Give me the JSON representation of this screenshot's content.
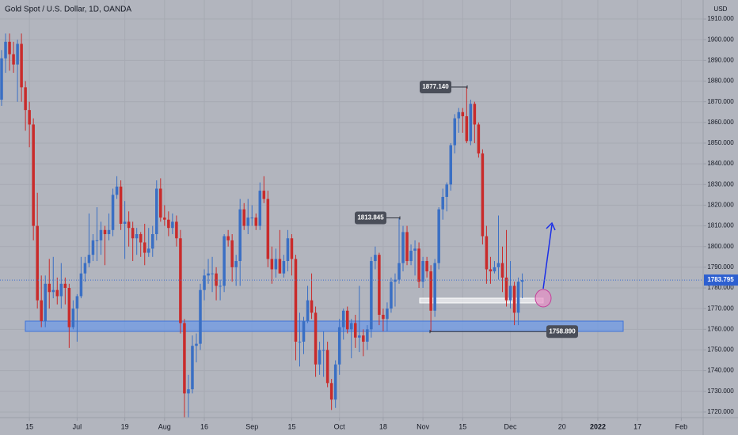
{
  "chart_data": {
    "type": "candlestick",
    "title": "Gold Spot / U.S. Dollar, 1D, OANDA",
    "y_axis_label": "USD",
    "up_color": "#3a6fc4",
    "down_color": "#c92b2b",
    "grid": true,
    "x": [
      -7,
      -6,
      -5,
      -4,
      -3,
      -2,
      -1,
      0,
      1,
      2,
      3,
      4,
      5,
      6,
      7,
      8,
      9,
      10,
      11,
      12,
      13,
      14,
      15,
      16,
      17,
      18,
      19,
      20,
      21,
      22,
      23,
      24,
      25,
      26,
      27,
      28,
      29,
      30,
      31,
      32,
      33,
      34,
      35,
      36,
      37,
      38,
      39,
      40,
      41,
      42,
      43,
      44,
      45,
      46,
      47,
      48,
      49,
      50,
      51,
      52,
      53,
      54,
      55,
      56,
      57,
      58,
      59,
      60,
      61,
      62,
      63,
      64,
      65,
      66,
      67,
      68,
      69,
      70,
      71,
      72,
      73,
      74,
      75,
      76,
      77,
      78,
      79,
      80,
      81,
      82,
      83,
      84,
      85,
      86,
      87,
      88,
      89,
      90,
      91,
      92,
      93,
      94,
      95,
      96,
      97,
      98,
      99,
      100,
      101,
      102,
      103,
      104,
      105,
      106,
      107,
      108,
      109,
      110,
      111,
      112,
      113,
      114,
      115,
      116,
      117,
      118,
      119,
      120,
      121,
      122,
      123,
      124
    ],
    "open": [
      1871,
      1891,
      1899,
      1893,
      1888,
      1898,
      1877,
      1866,
      1859,
      1810,
      1774,
      1764,
      1782,
      1778,
      1779,
      1776,
      1782,
      1780,
      1761,
      1770,
      1776,
      1787,
      1792,
      1796,
      1803,
      1803,
      1808,
      1806,
      1808,
      1825,
      1829,
      1811,
      1812,
      1809,
      1804,
      1806,
      1802,
      1797,
      1799,
      1806,
      1828,
      1814,
      1813,
      1809,
      1812,
      1804,
      1763,
      1729,
      1731,
      1752,
      1753,
      1779,
      1786,
      1787,
      1787,
      1781,
      1781,
      1805,
      1803,
      1790,
      1793,
      1818,
      1810,
      1814,
      1814,
      1810,
      1827,
      1823,
      1794,
      1789,
      1794,
      1787,
      1793,
      1804,
      1794,
      1754,
      1754,
      1764,
      1774,
      1768,
      1743,
      1750,
      1750,
      1734,
      1726,
      1743,
      1761,
      1769,
      1760,
      1763,
      1756,
      1757,
      1754,
      1760,
      1793,
      1796,
      1767,
      1765,
      1770,
      1783,
      1784,
      1792,
      1807,
      1793,
      1798,
      1799,
      1783,
      1793,
      1788,
      1769,
      1792,
      1818,
      1824,
      1830,
      1849,
      1862,
      1865,
      1863,
      1851,
      1869,
      1859,
      1845,
      1805,
      1789,
      1788,
      1790,
      1792,
      1785,
      1774,
      1781,
      1768,
      1783
    ],
    "high": [
      1895,
      1903,
      1903,
      1899,
      1900,
      1903,
      1880,
      1870,
      1862,
      1826,
      1786,
      1786,
      1794,
      1795,
      1785,
      1792,
      1785,
      1782,
      1774,
      1777,
      1795,
      1795,
      1816,
      1806,
      1819,
      1812,
      1810,
      1816,
      1828,
      1834,
      1832,
      1822,
      1817,
      1812,
      1809,
      1807,
      1811,
      1809,
      1810,
      1832,
      1833,
      1820,
      1817,
      1816,
      1815,
      1808,
      1765,
      1738,
      1757,
      1758,
      1782,
      1789,
      1794,
      1795,
      1790,
      1784,
      1806,
      1808,
      1806,
      1796,
      1823,
      1821,
      1823,
      1820,
      1816,
      1831,
      1834,
      1827,
      1800,
      1799,
      1808,
      1796,
      1808,
      1806,
      1796,
      1768,
      1766,
      1781,
      1787,
      1771,
      1754,
      1759,
      1754,
      1736,
      1745,
      1765,
      1770,
      1771,
      1765,
      1767,
      1781,
      1760,
      1762,
      1795,
      1800,
      1797,
      1770,
      1773,
      1785,
      1787,
      1813.845,
      1810,
      1810,
      1801,
      1803,
      1802,
      1795,
      1795,
      1791,
      1794,
      1819,
      1828,
      1831,
      1850,
      1864,
      1867,
      1867,
      1877.14,
      1871,
      1870,
      1860,
      1847,
      1810,
      1795,
      1793,
      1815,
      1800,
      1808,
      1793,
      1783,
      1785,
      1787
    ],
    "low": [
      1868,
      1884,
      1885,
      1884,
      1870,
      1870,
      1856,
      1848,
      1803,
      1770,
      1761,
      1761,
      1770,
      1775,
      1772,
      1770,
      1772,
      1751,
      1760,
      1754,
      1775,
      1783,
      1790,
      1793,
      1793,
      1796,
      1791,
      1803,
      1805,
      1823,
      1808,
      1794,
      1800,
      1793,
      1796,
      1795,
      1791,
      1795,
      1795,
      1803,
      1812,
      1810,
      1805,
      1806,
      1800,
      1758,
      1717.5,
      1717.5,
      1729,
      1744,
      1750,
      1774,
      1782,
      1778,
      1774,
      1774,
      1778,
      1800,
      1783,
      1781,
      1781,
      1808,
      1806,
      1810,
      1808,
      1808,
      1821,
      1790,
      1782,
      1785,
      1787,
      1785,
      1788,
      1786,
      1745,
      1742,
      1748,
      1763,
      1765,
      1737,
      1738,
      1737,
      1732,
      1721,
      1722,
      1738,
      1755,
      1758,
      1746,
      1751,
      1749,
      1747,
      1750,
      1756,
      1789,
      1762,
      1759,
      1759,
      1768,
      1771,
      1782,
      1788,
      1791,
      1791,
      1786,
      1780,
      1780,
      1785,
      1758.89,
      1766,
      1789,
      1813,
      1817,
      1827,
      1845,
      1855,
      1855,
      1850,
      1849,
      1850,
      1843,
      1801,
      1782,
      1782,
      1787,
      1784,
      1778,
      1771,
      1770,
      1762,
      1762,
      1775
    ],
    "close": [
      1891,
      1899,
      1893,
      1888,
      1898,
      1877,
      1866,
      1859,
      1810,
      1774,
      1764,
      1782,
      1778,
      1779,
      1776,
      1782,
      1780,
      1761,
      1770,
      1776,
      1787,
      1792,
      1796,
      1803,
      1803,
      1808,
      1806,
      1808,
      1825,
      1829,
      1811,
      1812,
      1809,
      1804,
      1806,
      1802,
      1797,
      1799,
      1806,
      1828,
      1814,
      1813,
      1809,
      1812,
      1804,
      1763,
      1729,
      1731,
      1752,
      1753,
      1779,
      1786,
      1787,
      1787,
      1781,
      1781,
      1805,
      1803,
      1790,
      1793,
      1818,
      1810,
      1814,
      1814,
      1810,
      1827,
      1823,
      1794,
      1789,
      1794,
      1787,
      1793,
      1804,
      1794,
      1754,
      1754,
      1764,
      1774,
      1768,
      1743,
      1750,
      1750,
      1734,
      1726,
      1743,
      1761,
      1769,
      1760,
      1763,
      1756,
      1757,
      1754,
      1760,
      1793,
      1796,
      1767,
      1765,
      1770,
      1783,
      1784,
      1792,
      1807,
      1793,
      1798,
      1799,
      1783,
      1793,
      1788,
      1769,
      1792,
      1818,
      1824,
      1830,
      1849,
      1862,
      1865,
      1863,
      1851,
      1869,
      1859,
      1845,
      1805,
      1789,
      1788,
      1790,
      1792,
      1785,
      1774,
      1781,
      1768,
      1783,
      1783.795
    ],
    "last_price": 1783.795,
    "xlim": [
      -7.4,
      169.5
    ],
    "ylim": [
      1717.3,
      1919.2
    ],
    "xticks": [
      {
        "value": 0,
        "label": "15"
      },
      {
        "value": 12,
        "label": "Jul"
      },
      {
        "value": 24,
        "label": "19"
      },
      {
        "value": 34,
        "label": "Aug"
      },
      {
        "value": 44,
        "label": "16"
      },
      {
        "value": 56,
        "label": "Sep"
      },
      {
        "value": 66,
        "label": "15"
      },
      {
        "value": 78,
        "label": "Oct"
      },
      {
        "value": 89,
        "label": "18"
      },
      {
        "value": 99,
        "label": "Nov"
      },
      {
        "value": 109,
        "label": "15"
      },
      {
        "value": 121,
        "label": "Dec"
      },
      {
        "value": 134,
        "label": "20"
      },
      {
        "value": 143,
        "label": "2022"
      },
      {
        "value": 153,
        "label": "17"
      },
      {
        "value": 164,
        "label": "Feb"
      }
    ],
    "yticks": [
      {
        "value": 1720,
        "label": "1720.000"
      },
      {
        "value": 1730,
        "label": "1730.000"
      },
      {
        "value": 1740,
        "label": "1740.000"
      },
      {
        "value": 1750,
        "label": "1750.000"
      },
      {
        "value": 1760,
        "label": "1760.000"
      },
      {
        "value": 1770,
        "label": "1770.000"
      },
      {
        "value": 1780,
        "label": "1780.000"
      },
      {
        "value": 1790,
        "label": "1790.000"
      },
      {
        "value": 1800,
        "label": "1800.000"
      },
      {
        "value": 1810,
        "label": "1810.000"
      },
      {
        "value": 1820,
        "label": "1820.000"
      },
      {
        "value": 1830,
        "label": "1830.000"
      },
      {
        "value": 1840,
        "label": "1840.000"
      },
      {
        "value": 1850,
        "label": "1850.000"
      },
      {
        "value": 1860,
        "label": "1860.000"
      },
      {
        "value": 1870,
        "label": "1870.000"
      },
      {
        "value": 1880,
        "label": "1880.000"
      },
      {
        "value": 1890,
        "label": "1890.000"
      },
      {
        "value": 1900,
        "label": "1900.000"
      },
      {
        "value": 1910,
        "label": "1910.000"
      }
    ],
    "annotations": [
      {
        "value": 1877.14,
        "label": "1877.140"
      },
      {
        "value": 1813.845,
        "label": "1813.845"
      },
      {
        "value": 1758.89,
        "label": "1758.890"
      }
    ]
  }
}
